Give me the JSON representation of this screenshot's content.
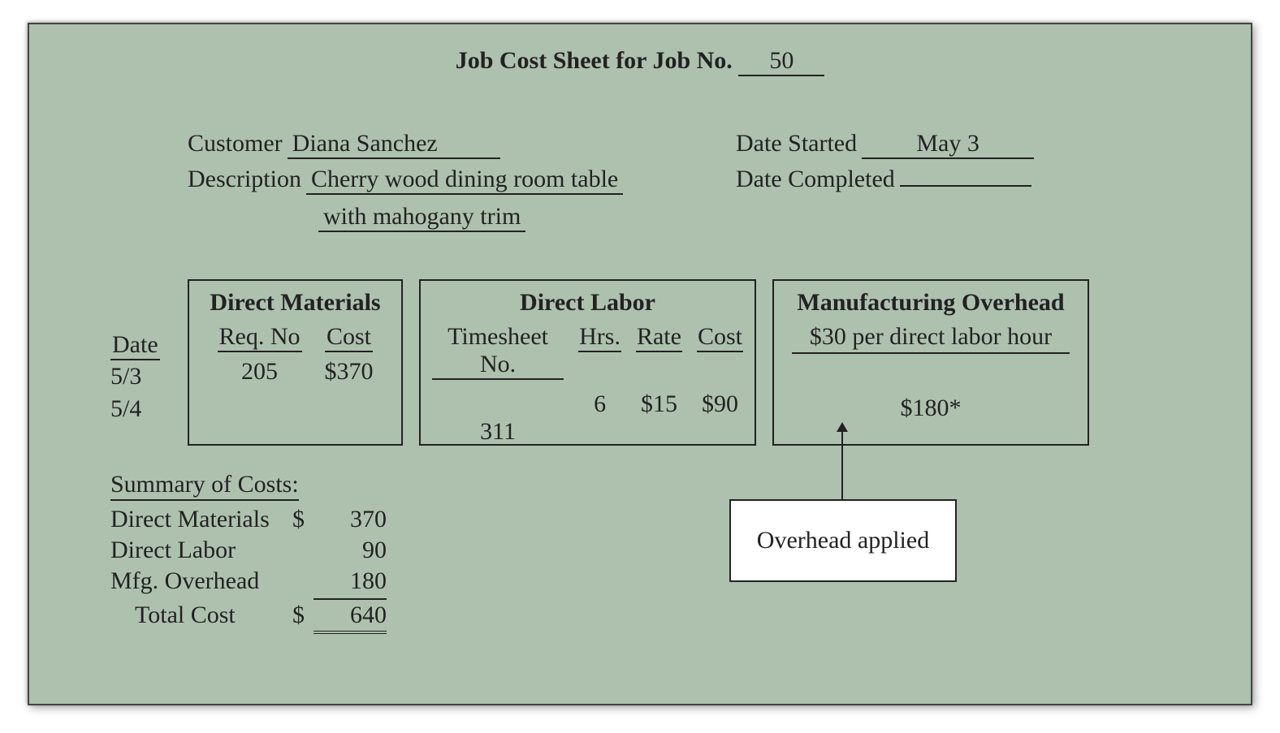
{
  "title": {
    "prefix": "Job Cost Sheet for Job No.",
    "job_no": "50"
  },
  "header": {
    "customer_label": "Customer",
    "customer": "Diana Sanchez",
    "description_label": "Description",
    "description_line1": "Cherry wood dining room table",
    "description_line2": "with mahogany trim",
    "date_started_label": "Date Started",
    "date_started": "May 3",
    "date_completed_label": "Date Completed",
    "date_completed": ""
  },
  "date_column": {
    "header": "Date",
    "rows": [
      "5/3",
      "5/4"
    ]
  },
  "direct_materials": {
    "title": "Direct Materials",
    "columns": [
      "Req. No",
      "Cost"
    ],
    "rows": [
      {
        "req_no": "205",
        "cost": "$370"
      },
      {
        "req_no": "",
        "cost": ""
      }
    ]
  },
  "direct_labor": {
    "title": "Direct Labor",
    "columns": [
      "Timesheet No.",
      "Hrs.",
      "Rate",
      "Cost"
    ],
    "rows": [
      {
        "timesheet_no": "",
        "hrs": "",
        "rate": "",
        "cost": ""
      },
      {
        "timesheet_no": "311",
        "hrs": "6",
        "rate": "$15",
        "cost": "$90"
      }
    ]
  },
  "overhead": {
    "title": "Manufacturing Overhead",
    "subtitle": "$30 per direct labor hour",
    "value": "$180*"
  },
  "summary": {
    "title": "Summary of Costs:",
    "lines": [
      {
        "label": "Direct Materials",
        "currency": "$",
        "amount": "370"
      },
      {
        "label": "Direct Labor",
        "currency": "",
        "amount": "90"
      },
      {
        "label": "Mfg. Overhead",
        "currency": "",
        "amount": "180"
      }
    ],
    "total_label": "Total Cost",
    "total_currency": "$",
    "total_amount": "640"
  },
  "callout": {
    "text": "Overhead applied"
  },
  "colors": {
    "card_bg": "#aec1af",
    "border": "#222222",
    "callout_bg": "#ffffff"
  }
}
